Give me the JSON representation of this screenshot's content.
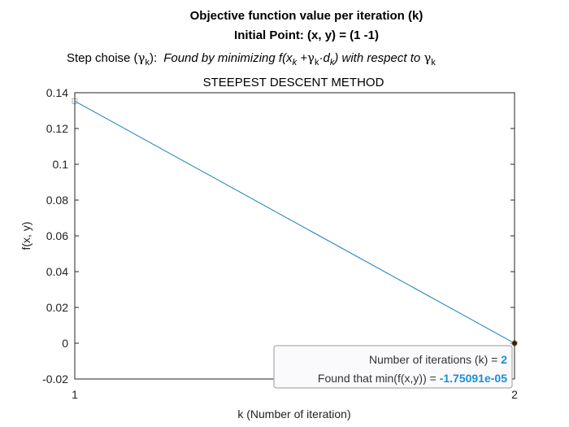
{
  "chart_data": {
    "type": "line",
    "title_line1": "Objective function value per iteration (k)",
    "title_line2": "Initial Point: (x, y) = (1 -1)",
    "subtitle": {
      "prefix": "Step choise (",
      "gamma": "γ",
      "k": "k",
      "close": "):",
      "found": "Found by minimizing f(x",
      "plus": " +",
      "dot": "·d",
      "closeparen": ")",
      "respect": " with respect to "
    },
    "method_title": "STEEPEST DESCENT METHOD",
    "xlabel": "k (Number of iteration)",
    "ylabel": "f(x, y)",
    "xlim": [
      1,
      2
    ],
    "ylim": [
      -0.02,
      0.14
    ],
    "xticks": [
      "1",
      "2"
    ],
    "yticks": [
      "-0.02",
      "0",
      "0.02",
      "0.04",
      "0.06",
      "0.08",
      "0.1",
      "0.12",
      "0.14"
    ],
    "series": [
      {
        "x": [
          1,
          2
        ],
        "y": [
          0.1353,
          -1.75091e-05
        ],
        "color": "#1a7fc1"
      }
    ],
    "datatip": {
      "iter_label": "Number of iterations (k) = ",
      "iter_value": "2",
      "min_label": "Found that min(f(x,y)) = ",
      "min_value": "-1.75091e-05"
    }
  }
}
